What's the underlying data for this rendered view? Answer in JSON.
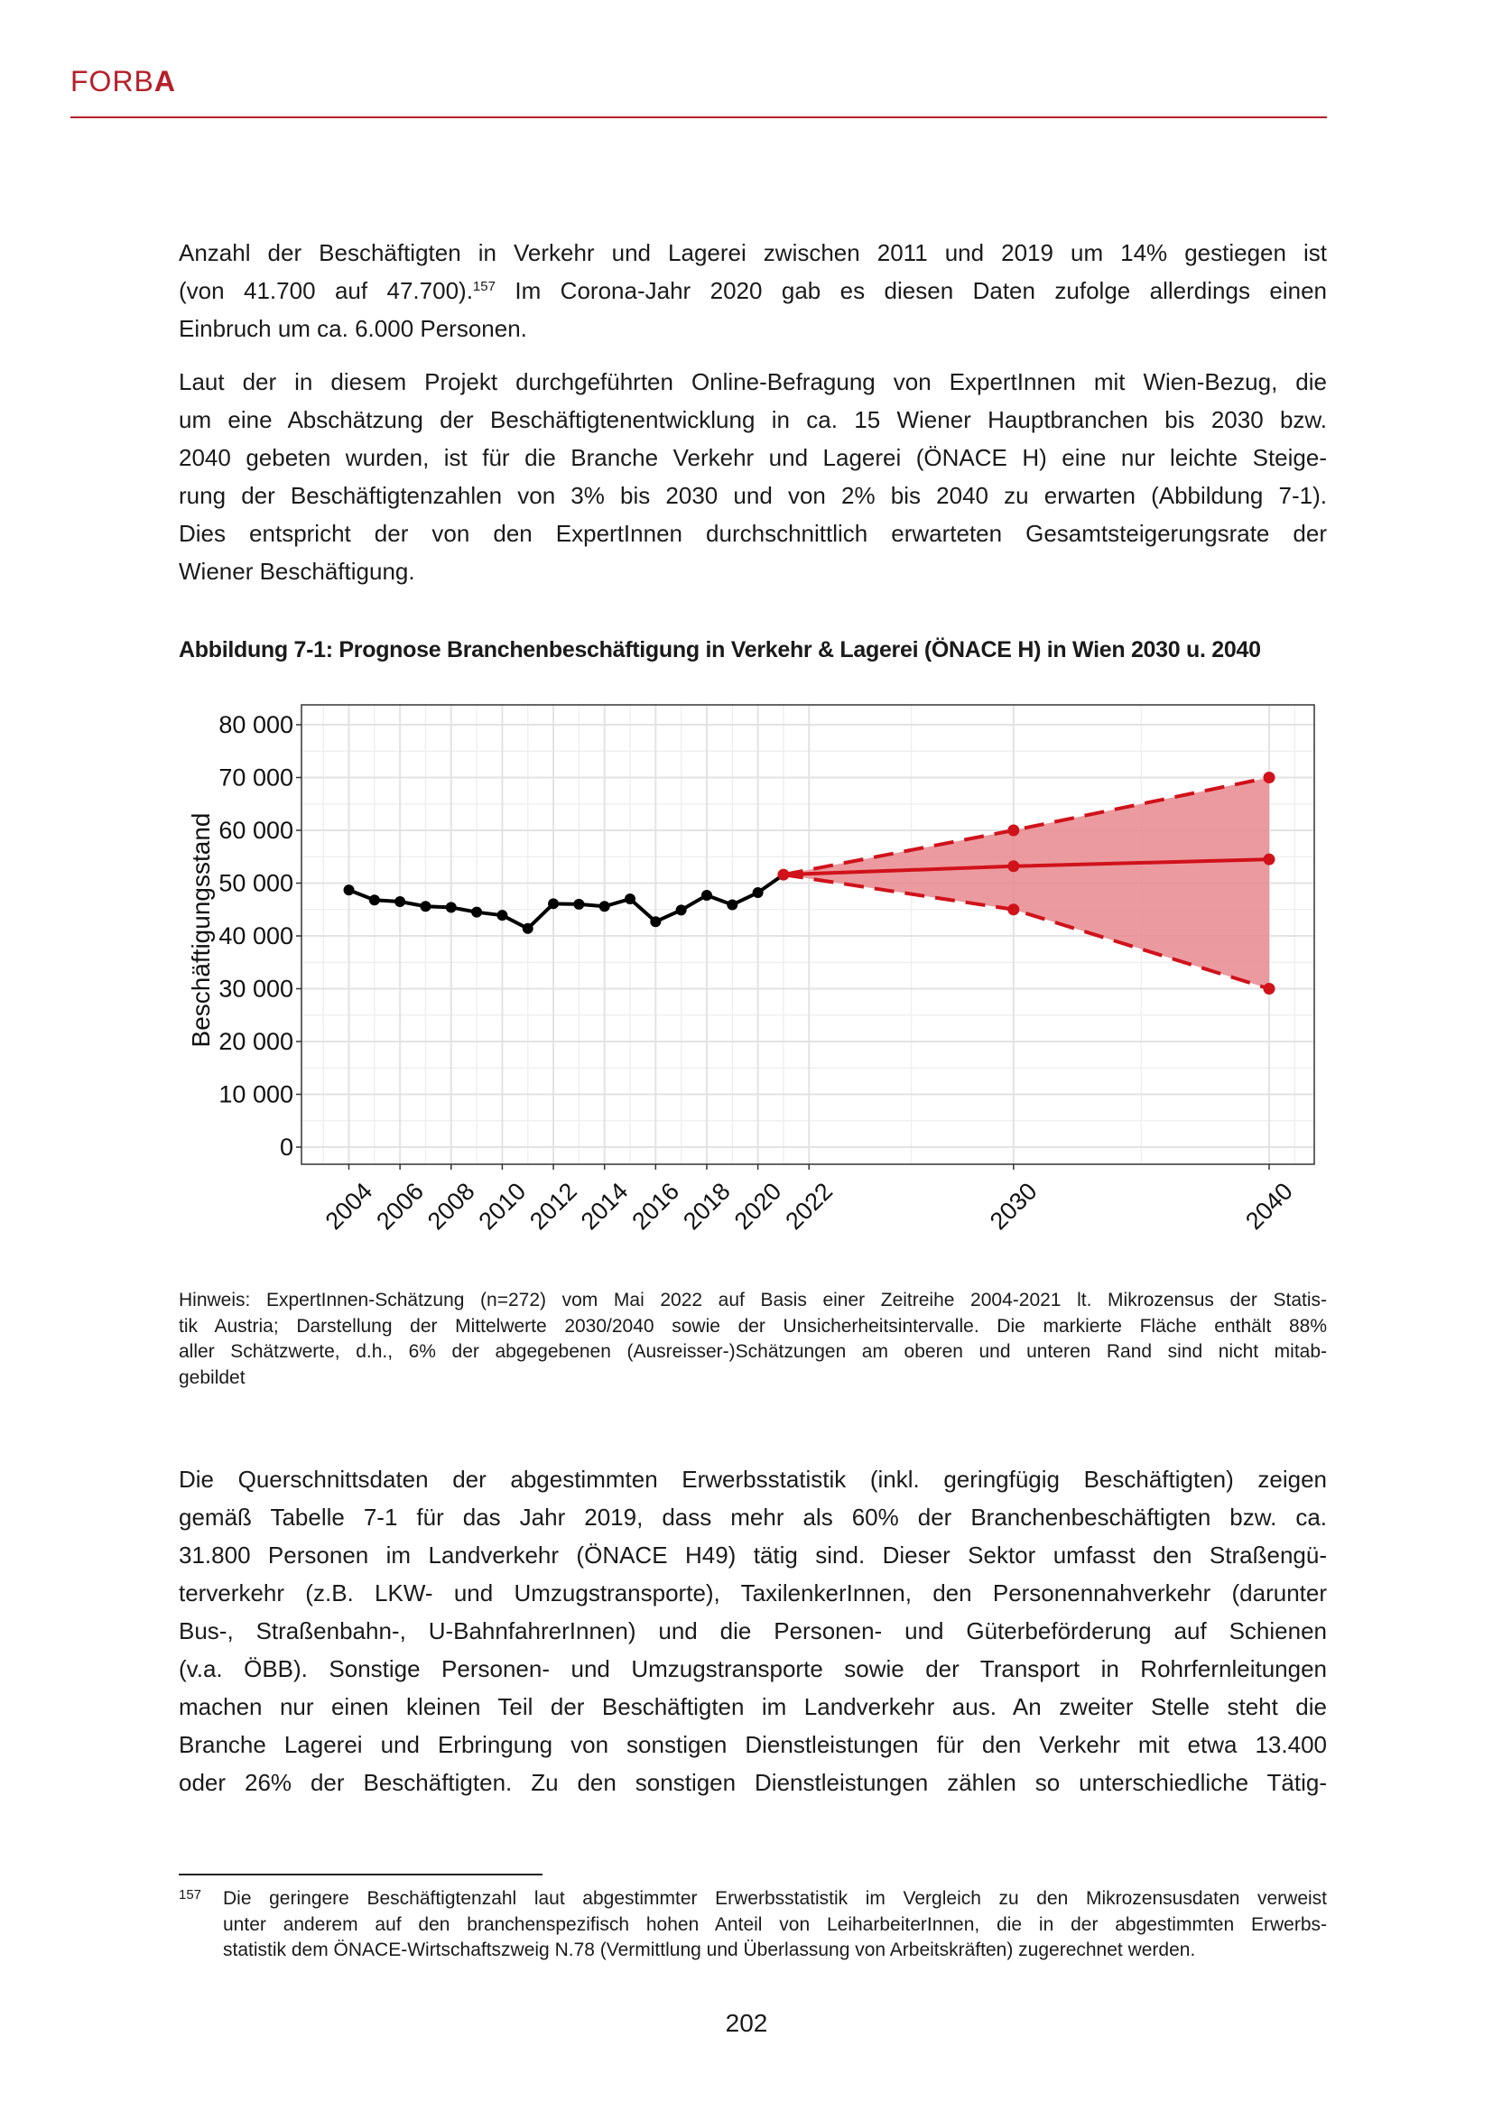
{
  "header": {
    "logo_text": "FORBA",
    "brand_color": "#b5202a"
  },
  "paragraph1": {
    "lines": [
      "Anzahl der Beschäftigten in Verkehr und Lagerei zwischen 2011 und 2019 um 14% gestiegen ist",
      "",
      "Einbruch um ca. 6.000 Personen."
    ],
    "line2_before": "(von 41.700 auf 47.700).",
    "footnote_ref": "157",
    "line2_after": " Im Corona-Jahr 2020 gab es diesen Daten zufolge allerdings einen"
  },
  "paragraph2": {
    "lines": [
      "Laut der in diesem Projekt durchgeführten Online-Befragung von ExpertInnen mit Wien-Bezug, die",
      "um eine Abschätzung der Beschäftigtenentwicklung in ca. 15 Wiener Hauptbranchen bis 2030 bzw.",
      "2040 gebeten wurden, ist für die Branche Verkehr und Lagerei (ÖNACE H) eine nur leichte Steige-",
      "rung der Beschäftigtenzahlen von 3% bis 2030 und von 2% bis 2040 zu erwarten (Abbildung 7-1).",
      "Dies entspricht der von den ExpertInnen durchschnittlich erwarteten Gesamtsteigerungsrate der",
      "Wiener Beschäftigung."
    ]
  },
  "figure": {
    "caption": "Abbildung 7-1:   Prognose Branchenbeschäftigung in Verkehr & Lagerei (ÖNACE H) in Wien 2030 u. 2040",
    "note_lines": [
      "Hinweis: ExpertInnen-Schätzung (n=272) vom Mai 2022 auf Basis einer Zeitreihe 2004-2021 lt. Mikrozensus der Statis-",
      "tik Austria; Darstellung der Mittelwerte 2030/2040 sowie der Unsicherheitsintervalle. Die markierte Fläche enthält 88%",
      "aller Schätzwerte, d.h., 6% der abgegebenen (Ausreisser-)Schätzungen am oberen und unteren Rand sind nicht mitab-",
      "gebildet"
    ]
  },
  "chart_data": {
    "type": "line",
    "ylabel": "Beschäftigungsstand",
    "xlabel": "",
    "xlim": [
      2003,
      2041
    ],
    "ylim": [
      -3000,
      83000
    ],
    "x_ticks": [
      "2004",
      "2006",
      "2008",
      "2010",
      "2012",
      "2014",
      "2016",
      "2018",
      "2020",
      "2022",
      "2030",
      "2040"
    ],
    "y_ticks": [
      "0",
      "10 000",
      "20 000",
      "30 000",
      "40 000",
      "50 000",
      "60 000",
      "70 000",
      "80 000"
    ],
    "y_tick_values": [
      0,
      10000,
      20000,
      30000,
      40000,
      50000,
      60000,
      70000,
      80000
    ],
    "grid": true,
    "historical": {
      "color": "#000000",
      "x": [
        2004,
        2005,
        2006,
        2007,
        2008,
        2009,
        2010,
        2011,
        2012,
        2013,
        2014,
        2015,
        2016,
        2017,
        2018,
        2019,
        2020,
        2021
      ],
      "y": [
        48700,
        46800,
        46500,
        45600,
        45400,
        44500,
        43900,
        41400,
        46100,
        46000,
        45600,
        47000,
        42700,
        44900,
        47700,
        45900,
        48200,
        51600
      ]
    },
    "forecast": {
      "color": "#d0121b",
      "band_color": "#e88a8f",
      "x": [
        2021,
        2030,
        2040
      ],
      "mean": [
        51600,
        53200,
        54500
      ],
      "upper": [
        51600,
        60000,
        70000
      ],
      "lower": [
        51600,
        45000,
        30000
      ]
    }
  },
  "paragraph3": {
    "lines": [
      "Die Querschnittsdaten der abgestimmten Erwerbsstatistik (inkl. geringfügig Beschäftigten) zeigen",
      "gemäß Tabelle 7-1 für das Jahr 2019, dass mehr als 60% der Branchenbeschäftigten bzw. ca.",
      "31.800 Personen im Landverkehr (ÖNACE H49) tätig sind. Dieser Sektor umfasst den Straßengü-",
      "terverkehr (z.B. LKW- und Umzugstransporte), TaxilenkerInnen, den Personennahverkehr (darunter",
      "Bus-, Straßenbahn-, U-BahnfahrerInnen) und die Personen- und Güterbeförderung auf Schienen",
      "(v.a. ÖBB). Sonstige Personen- und Umzugstransporte sowie der Transport in Rohrfernleitungen",
      "machen nur einen kleinen Teil der Beschäftigten im Landverkehr aus. An zweiter Stelle steht die",
      "Branche Lagerei und Erbringung von sonstigen Dienstleistungen für den Verkehr mit etwa 13.400",
      "oder 26% der Beschäftigten. Zu den sonstigen Dienstleistungen zählen so unterschiedliche Tätig-"
    ]
  },
  "footnote": {
    "number": "157",
    "lines": [
      "Die geringere Beschäftigtenzahl laut abgestimmter Erwerbsstatistik im Vergleich zu den Mikrozensusdaten verweist",
      "unter anderem auf den branchenspezifisch hohen Anteil von LeiharbeiterInnen, die in der abgestimmten Erwerbs-",
      "statistik dem ÖNACE-Wirtschaftszweig N.78 (Vermittlung und Überlassung von Arbeitskräften) zugerechnet werden."
    ]
  },
  "page_number": "202"
}
